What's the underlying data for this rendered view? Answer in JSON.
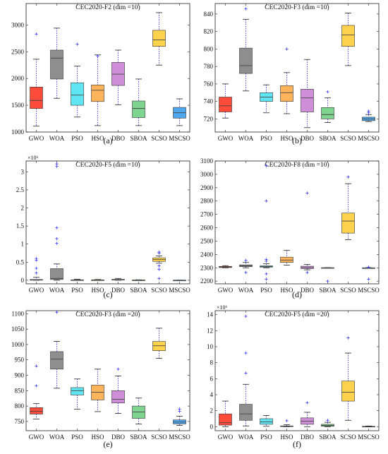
{
  "chart_data": [
    {
      "type": "boxplot",
      "panel_label": "(a)",
      "title": "CEC2020-F2 (dim =10)",
      "categories": [
        "GWO",
        "WOA",
        "PSO",
        "HSO",
        "DBO",
        "SBOA",
        "SCSO",
        "MSCSO"
      ],
      "ylim": [
        1000,
        3400
      ],
      "yticks": [
        1000,
        1500,
        2000,
        2500,
        3000
      ],
      "ytick_labels": [
        "1000",
        "1500",
        "2000",
        "2500",
        "3000"
      ],
      "exponent": "",
      "boxes": [
        {
          "min": 1110,
          "q1": 1440,
          "median": 1590,
          "q3": 1840,
          "max": 2360,
          "outliers": [
            2830
          ]
        },
        {
          "min": 1630,
          "q1": 1990,
          "median": 2380,
          "q3": 2530,
          "max": 2940,
          "outliers": []
        },
        {
          "min": 1280,
          "q1": 1500,
          "median": 1690,
          "q3": 1920,
          "max": 2230,
          "outliers": [
            2640
          ]
        },
        {
          "min": 1120,
          "q1": 1570,
          "median": 1780,
          "q3": 1880,
          "max": 2440,
          "outliers": [
            2420
          ]
        },
        {
          "min": 1510,
          "q1": 1870,
          "median": 2080,
          "q3": 2300,
          "max": 2530,
          "outliers": []
        },
        {
          "min": 1120,
          "q1": 1270,
          "median": 1440,
          "q3": 1580,
          "max": 1990,
          "outliers": []
        },
        {
          "min": 2250,
          "q1": 2600,
          "median": 2720,
          "q3": 2900,
          "max": 3230,
          "outliers": []
        },
        {
          "min": 1120,
          "q1": 1260,
          "median": 1360,
          "q3": 1460,
          "max": 1620,
          "outliers": []
        }
      ]
    },
    {
      "type": "boxplot",
      "panel_label": "(b)",
      "title": "CEC2020-F3 (dim =10)",
      "categories": [
        "GWO",
        "WOA",
        "PSO",
        "HSO",
        "DBO",
        "SBOA",
        "SCSO",
        "MSCSO"
      ],
      "ylim": [
        705,
        852
      ],
      "yticks": [
        720,
        740,
        760,
        780,
        800,
        820,
        840
      ],
      "ytick_labels": [
        "720",
        "740",
        "760",
        "780",
        "800",
        "820",
        "840"
      ],
      "exponent": "",
      "boxes": [
        {
          "min": 721,
          "q1": 728,
          "median": 735,
          "q3": 745,
          "max": 760,
          "outliers": []
        },
        {
          "min": 752,
          "q1": 772,
          "median": 781,
          "q3": 801,
          "max": 834,
          "outliers": [
            846
          ]
        },
        {
          "min": 727,
          "q1": 740,
          "median": 745,
          "q3": 750,
          "max": 759,
          "outliers": []
        },
        {
          "min": 726,
          "q1": 740,
          "median": 750,
          "q3": 758,
          "max": 773,
          "outliers": [
            800
          ]
        },
        {
          "min": 710,
          "q1": 728,
          "median": 744,
          "q3": 754,
          "max": 788,
          "outliers": []
        },
        {
          "min": 716,
          "q1": 720,
          "median": 725,
          "q3": 733,
          "max": 744,
          "outliers": [
            751
          ]
        },
        {
          "min": 781,
          "q1": 803,
          "median": 816,
          "q3": 827,
          "max": 841,
          "outliers": []
        },
        {
          "min": 717,
          "q1": 718,
          "median": 720,
          "q3": 722,
          "max": 725,
          "outliers": [
            727,
            729
          ]
        }
      ]
    },
    {
      "type": "boxplot",
      "panel_label": "(c)",
      "title": "CEC2020-F5 (dim =10)",
      "categories": [
        "GWO",
        "WOA",
        "PSO",
        "HSO",
        "DBO",
        "SBOA",
        "SCSO",
        "MSCSO"
      ],
      "ylim": [
        -0.1,
        3.3
      ],
      "yticks": [
        0,
        0.5,
        1,
        1.5,
        2,
        2.5,
        3
      ],
      "ytick_labels": [
        "0",
        "0.5",
        "1",
        "1.5",
        "2",
        "2.5",
        "3"
      ],
      "exponent": "×10⁶",
      "boxes": [
        {
          "min": 0,
          "q1": 0.005,
          "median": 0.01,
          "q3": 0.02,
          "max": 0.08,
          "outliers": [
            0.2,
            0.33,
            0.55,
            0.6
          ]
        },
        {
          "min": 0,
          "q1": 0.02,
          "median": 0.05,
          "q3": 0.32,
          "max": 0.45,
          "outliers": [
            1.02,
            1.15,
            1.45,
            3.15,
            3.22
          ]
        },
        {
          "min": 0,
          "q1": 0.003,
          "median": 0.006,
          "q3": 0.012,
          "max": 0.025,
          "outliers": []
        },
        {
          "min": 0,
          "q1": 0.002,
          "median": 0.005,
          "q3": 0.01,
          "max": 0.02,
          "outliers": []
        },
        {
          "min": 0,
          "q1": 0.005,
          "median": 0.012,
          "q3": 0.025,
          "max": 0.05,
          "outliers": []
        },
        {
          "min": 0,
          "q1": 0.001,
          "median": 0.003,
          "q3": 0.006,
          "max": 0.012,
          "outliers": []
        },
        {
          "min": 0.47,
          "q1": 0.52,
          "median": 0.57,
          "q3": 0.62,
          "max": 0.67,
          "outliers": [
            0.05,
            0.3,
            0.4,
            0.75,
            0.78
          ]
        },
        {
          "min": 0,
          "q1": 0.0,
          "median": 0.001,
          "q3": 0.002,
          "max": 0.003,
          "outliers": []
        }
      ]
    },
    {
      "type": "boxplot",
      "panel_label": "(d)",
      "title": "CEC2020-F8 (dim =10)",
      "categories": [
        "GWO",
        "WOA",
        "PSO",
        "HSO",
        "DBO",
        "SBOA",
        "SCSO",
        "MSCSO"
      ],
      "ylim": [
        2180,
        3100
      ],
      "yticks": [
        2200,
        2300,
        2400,
        2500,
        2600,
        2700,
        2800,
        2900,
        3000,
        3100
      ],
      "ytick_labels": [
        "2200",
        "2300",
        "2400",
        "2500",
        "2600",
        "2700",
        "2800",
        "2900",
        "3000",
        "3100"
      ],
      "exponent": "",
      "boxes": [
        {
          "min": 2300,
          "q1": 2302,
          "median": 2306,
          "q3": 2311,
          "max": 2316,
          "outliers": []
        },
        {
          "min": 2300,
          "q1": 2309,
          "median": 2314,
          "q3": 2322,
          "max": 2340,
          "outliers": [
            2265,
            2355
          ]
        },
        {
          "min": 2300,
          "q1": 2305,
          "median": 2309,
          "q3": 2315,
          "max": 2330,
          "outliers": [
            2215,
            2255,
            2350,
            2362,
            2800,
            3065
          ]
        },
        {
          "min": 2320,
          "q1": 2340,
          "median": 2358,
          "q3": 2380,
          "max": 2430,
          "outliers": []
        },
        {
          "min": 2285,
          "q1": 2294,
          "median": 2302,
          "q3": 2312,
          "max": 2325,
          "outliers": [
            2265,
            2860
          ]
        },
        {
          "min": 2298,
          "q1": 2299,
          "median": 2300,
          "q3": 2301,
          "max": 2302,
          "outliers": [
            2200
          ]
        },
        {
          "min": 2510,
          "q1": 2560,
          "median": 2650,
          "q3": 2710,
          "max": 2930,
          "outliers": [
            2980
          ]
        },
        {
          "min": 2299,
          "q1": 2300,
          "median": 2300,
          "q3": 2300,
          "max": 2301,
          "outliers": [
            2215,
            2305
          ]
        }
      ]
    },
    {
      "type": "boxplot",
      "panel_label": "(e)",
      "title": "CEC2020-F3 (dim =20)",
      "categories": [
        "GWO",
        "WOA",
        "PSO",
        "HSO",
        "DBO",
        "SBOA",
        "SCSO",
        "MSCSO"
      ],
      "ylim": [
        720,
        1110
      ],
      "yticks": [
        750,
        800,
        850,
        900,
        950,
        1000,
        1050,
        1100
      ],
      "ytick_labels": [
        "750",
        "800",
        "850",
        "900",
        "950",
        "1000",
        "1050",
        "1100"
      ],
      "exponent": "",
      "boxes": [
        {
          "min": 758,
          "q1": 774,
          "median": 783,
          "q3": 795,
          "max": 808,
          "outliers": [
            866,
            930
          ]
        },
        {
          "min": 858,
          "q1": 920,
          "median": 953,
          "q3": 977,
          "max": 1010,
          "outliers": [
            1105
          ]
        },
        {
          "min": 790,
          "q1": 836,
          "median": 850,
          "q3": 860,
          "max": 888,
          "outliers": []
        },
        {
          "min": 782,
          "q1": 820,
          "median": 845,
          "q3": 868,
          "max": 920,
          "outliers": []
        },
        {
          "min": 776,
          "q1": 810,
          "median": 822,
          "q3": 850,
          "max": 898,
          "outliers": [
            920
          ]
        },
        {
          "min": 742,
          "q1": 760,
          "median": 781,
          "q3": 800,
          "max": 826,
          "outliers": []
        },
        {
          "min": 955,
          "q1": 980,
          "median": 996,
          "q3": 1010,
          "max": 1053,
          "outliers": []
        },
        {
          "min": 737,
          "q1": 742,
          "median": 748,
          "q3": 755,
          "max": 767,
          "outliers": [
            783,
            790
          ]
        }
      ]
    },
    {
      "type": "boxplot",
      "panel_label": "(f)",
      "title": "CEC2020-F5 (dim =20)",
      "categories": [
        "GWO",
        "WOA",
        "PSO",
        "HSO",
        "DBO",
        "SBOA",
        "SCSO",
        "MSCSO"
      ],
      "ylim": [
        -0.5,
        14.5
      ],
      "yticks": [
        0,
        2,
        4,
        6,
        8,
        10,
        12,
        14
      ],
      "ytick_labels": [
        "0",
        "2",
        "4",
        "6",
        "8",
        "10",
        "12",
        "14"
      ],
      "exponent": "×10⁶",
      "boxes": [
        {
          "min": 0,
          "q1": 0.2,
          "median": 0.5,
          "q3": 1.6,
          "max": 3.2,
          "outliers": []
        },
        {
          "min": 0.1,
          "q1": 0.8,
          "median": 1.6,
          "q3": 2.8,
          "max": 5.3,
          "outliers": [
            6.7,
            9.2,
            13.8
          ]
        },
        {
          "min": 0.05,
          "q1": 0.3,
          "median": 0.6,
          "q3": 1.0,
          "max": 1.4,
          "outliers": []
        },
        {
          "min": 0,
          "q1": 0.02,
          "median": 0.05,
          "q3": 0.1,
          "max": 0.25,
          "outliers": [
            0.75
          ]
        },
        {
          "min": 0,
          "q1": 0.3,
          "median": 0.7,
          "q3": 1.1,
          "max": 1.8,
          "outliers": [
            3.0
          ]
        },
        {
          "min": 0,
          "q1": 0.05,
          "median": 0.15,
          "q3": 0.3,
          "max": 0.55,
          "outliers": [
            0.8
          ]
        },
        {
          "min": 0.8,
          "q1": 3.2,
          "median": 4.3,
          "q3": 5.7,
          "max": 9.2,
          "outliers": [
            11.1
          ]
        },
        {
          "min": 0,
          "q1": 0.0,
          "median": 0.02,
          "q3": 0.05,
          "max": 0.08,
          "outliers": []
        }
      ]
    }
  ],
  "colors": [
    "#ff4b3a",
    "#8e8e8e",
    "#5fe6f2",
    "#ffb35a",
    "#cf8fd8",
    "#7fd48f",
    "#ffd24d",
    "#4fa8ee"
  ]
}
